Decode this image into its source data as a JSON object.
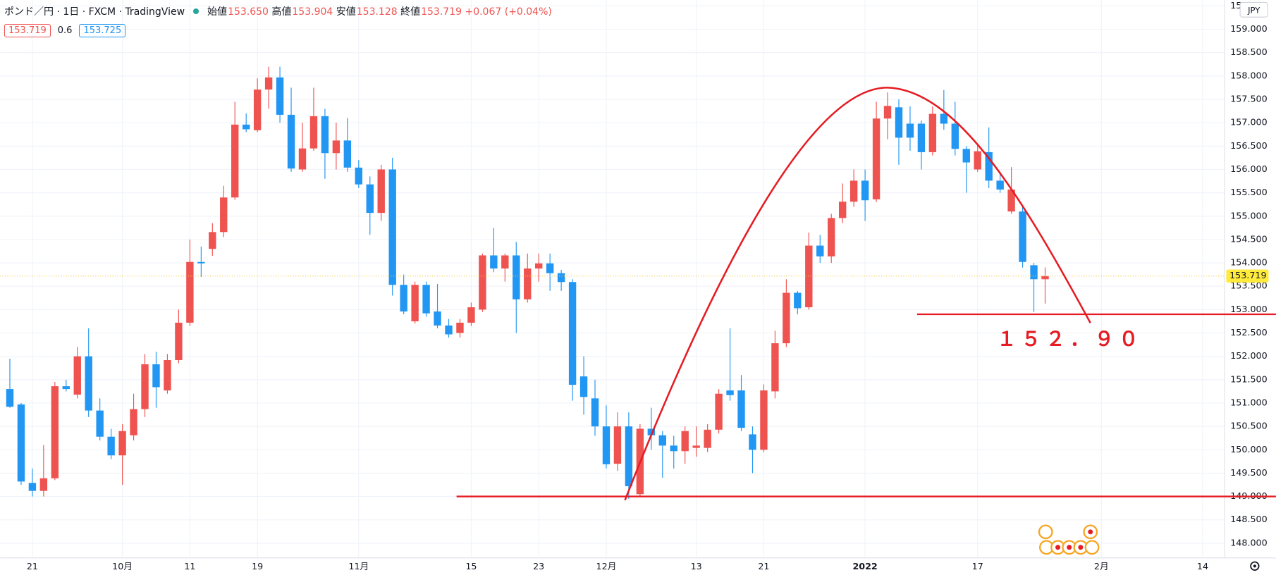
{
  "header": {
    "symbol": "ポンド／円 · 1日 · FXCM · TradingView",
    "fields": [
      {
        "label": "始値",
        "value": "153.650"
      },
      {
        "label": "高値",
        "value": "153.904"
      },
      {
        "label": "安値",
        "value": "153.128"
      },
      {
        "label": "終値",
        "value": "153.719"
      }
    ],
    "change": "+0.067 (+0.04%)",
    "bid": "153.719",
    "spread": "0.6",
    "ask": "153.725",
    "currency": "JPY"
  },
  "chart_data": {
    "type": "candlestick",
    "up_color": "#ef5350",
    "down_color": "#2196f3",
    "grid": true,
    "categories": [
      null,
      null,
      "21",
      null,
      null,
      null,
      null,
      null,
      null,
      null,
      "10月",
      null,
      null,
      null,
      null,
      null,
      "11",
      null,
      null,
      null,
      null,
      null,
      "19",
      null,
      null,
      null,
      null,
      null,
      null,
      null,
      null,
      "11月",
      null,
      null,
      null,
      null,
      null,
      null,
      null,
      null,
      null,
      "15",
      null,
      null,
      null,
      null,
      null,
      "23",
      null,
      null,
      null,
      null,
      null,
      "12月",
      null,
      null,
      null,
      null,
      null,
      null,
      null,
      "13",
      null,
      null,
      null,
      null,
      null,
      "21",
      null,
      null,
      null,
      null,
      null,
      null,
      null,
      null,
      "2022",
      null,
      null,
      null,
      null,
      null,
      null,
      null,
      null,
      null,
      "17",
      null,
      null,
      null,
      null,
      null,
      null,
      null,
      null,
      null,
      null,
      "2月",
      null,
      null,
      null,
      null,
      null,
      null,
      null,
      null,
      "14",
      null
    ],
    "open": [
      151.3,
      150.97,
      149.29,
      149.12,
      149.39,
      151.36,
      151.18,
      152.0,
      150.84,
      150.28,
      149.88,
      150.31,
      150.87,
      151.83,
      151.27,
      151.92,
      152.72,
      154.02,
      154.3,
      154.66,
      155.4,
      156.96,
      156.84,
      157.71,
      157.97,
      157.17,
      156.0,
      156.45,
      157.14,
      156.35,
      156.62,
      156.04,
      155.68,
      155.07,
      156.0,
      153.53,
      152.75,
      153.53,
      152.96,
      152.66,
      152.5,
      152.72,
      153.0,
      154.16,
      153.88,
      154.16,
      153.22,
      153.88,
      153.99,
      153.78,
      153.59,
      151.57,
      151.1,
      150.5,
      149.7,
      150.5,
      149.05,
      150.45,
      150.31,
      150.09,
      149.97,
      150.04,
      150.04,
      150.43,
      151.27,
      151.27,
      150.33,
      150.0,
      151.25,
      152.28,
      153.36,
      153.05,
      154.37,
      154.14,
      154.96,
      155.31,
      155.76,
      155.36,
      157.09,
      157.33,
      156.98,
      156.98,
      156.37,
      157.19,
      156.98,
      156.44,
      156.0,
      156.37,
      155.76,
      155.1,
      155.1,
      153.95,
      153.65,
      null,
      null,
      null,
      null,
      null,
      null,
      null,
      null,
      null,
      null,
      null,
      null,
      null,
      null,
      null
    ],
    "high": [
      151.95,
      151.0,
      149.6,
      150.1,
      151.45,
      151.5,
      152.2,
      152.6,
      151.1,
      150.45,
      150.55,
      151.2,
      152.05,
      152.1,
      152.05,
      153.0,
      154.5,
      154.35,
      154.85,
      155.65,
      157.45,
      157.2,
      157.95,
      158.2,
      158.2,
      157.75,
      157.0,
      157.75,
      157.3,
      157.0,
      157.1,
      156.2,
      155.85,
      156.1,
      156.25,
      153.75,
      153.6,
      153.6,
      153.55,
      152.8,
      152.8,
      153.15,
      154.2,
      154.75,
      154.2,
      154.45,
      154.2,
      154.2,
      154.2,
      153.85,
      153.65,
      152.0,
      151.5,
      150.95,
      150.8,
      150.8,
      150.55,
      150.9,
      150.4,
      150.3,
      150.5,
      150.5,
      150.55,
      151.3,
      152.6,
      151.6,
      150.5,
      151.4,
      152.55,
      153.65,
      153.4,
      154.65,
      154.6,
      155.05,
      155.7,
      156.0,
      156.0,
      157.45,
      157.65,
      157.5,
      157.35,
      157.05,
      157.35,
      157.7,
      157.45,
      156.5,
      156.55,
      156.9,
      155.95,
      156.05,
      155.2,
      154.0,
      153.904,
      null,
      null,
      null,
      null,
      null,
      null,
      null,
      null,
      null,
      null,
      null,
      null,
      null,
      null,
      null
    ],
    "low": [
      150.9,
      149.25,
      149.0,
      149.0,
      149.35,
      151.25,
      151.1,
      150.7,
      150.2,
      149.8,
      149.25,
      150.2,
      150.7,
      150.9,
      151.2,
      151.85,
      152.65,
      153.7,
      154.15,
      154.55,
      155.35,
      156.8,
      156.8,
      157.3,
      157.0,
      155.95,
      155.95,
      156.4,
      155.8,
      156.0,
      155.95,
      155.6,
      154.6,
      154.9,
      153.3,
      152.9,
      152.7,
      152.85,
      152.6,
      152.4,
      152.4,
      152.65,
      152.95,
      153.8,
      153.6,
      152.5,
      153.15,
      153.6,
      153.4,
      153.4,
      151.05,
      150.75,
      150.3,
      149.6,
      149.55,
      148.95,
      149.0,
      150.0,
      149.4,
      149.6,
      149.7,
      149.85,
      149.95,
      150.35,
      151.05,
      150.4,
      149.5,
      149.95,
      151.1,
      152.2,
      152.9,
      153.0,
      154.0,
      154.0,
      154.85,
      155.2,
      154.9,
      155.3,
      156.65,
      156.1,
      156.4,
      156.0,
      156.3,
      156.85,
      156.3,
      155.5,
      155.95,
      155.6,
      155.5,
      155.05,
      153.9,
      152.95,
      153.128,
      null,
      null,
      null,
      null,
      null,
      null,
      null,
      null,
      null,
      null,
      null,
      null,
      null,
      null,
      null
    ],
    "close": [
      150.92,
      149.32,
      149.12,
      149.39,
      151.36,
      151.3,
      152.0,
      150.84,
      150.28,
      149.88,
      150.4,
      150.87,
      151.83,
      151.34,
      151.92,
      152.72,
      154.02,
      153.99,
      154.66,
      155.4,
      156.96,
      156.86,
      157.71,
      157.97,
      157.17,
      156.02,
      156.45,
      157.14,
      156.35,
      156.62,
      156.04,
      155.68,
      155.07,
      156.0,
      153.53,
      152.96,
      153.53,
      152.92,
      152.66,
      152.47,
      152.72,
      153.05,
      154.16,
      153.88,
      154.16,
      153.22,
      153.88,
      153.99,
      153.78,
      153.59,
      151.39,
      151.13,
      150.5,
      149.69,
      150.5,
      149.22,
      150.45,
      150.31,
      150.09,
      149.97,
      150.4,
      150.09,
      150.43,
      151.2,
      151.17,
      150.47,
      150.0,
      151.27,
      152.28,
      153.36,
      153.03,
      154.37,
      154.14,
      154.96,
      155.31,
      155.76,
      155.34,
      157.09,
      157.36,
      156.68,
      156.68,
      156.37,
      157.19,
      156.98,
      156.44,
      156.15,
      156.39,
      155.76,
      155.57,
      155.57,
      154.02,
      153.65,
      153.719,
      null,
      null,
      null,
      null,
      null,
      null,
      null,
      null,
      null,
      null,
      null,
      null,
      null,
      null,
      null
    ],
    "ylim": [
      147.72,
      159.627
    ],
    "yticks": [
      {
        "value": 148,
        "label": "148.000"
      },
      {
        "value": 148.5,
        "label": "148.500"
      },
      {
        "value": 149,
        "label": "149.000"
      },
      {
        "value": 149.5,
        "label": "149.500"
      },
      {
        "value": 150,
        "label": "150.000"
      },
      {
        "value": 150.5,
        "label": "150.500"
      },
      {
        "value": 151,
        "label": "151.000"
      },
      {
        "value": 151.5,
        "label": "151.500"
      },
      {
        "value": 152,
        "label": "152.000"
      },
      {
        "value": 152.5,
        "label": "152.500"
      },
      {
        "value": 153,
        "label": "153.000"
      },
      {
        "value": 153.5,
        "label": "153.500"
      },
      {
        "value": 154,
        "label": "154.000"
      },
      {
        "value": 154.5,
        "label": "154.500"
      },
      {
        "value": 155,
        "label": "155.000"
      },
      {
        "value": 155.5,
        "label": "155.500"
      },
      {
        "value": 156,
        "label": "156.000"
      },
      {
        "value": 156.5,
        "label": "156.500"
      },
      {
        "value": 157,
        "label": "157.000"
      },
      {
        "value": 157.5,
        "label": "157.500"
      },
      {
        "value": 158,
        "label": "158.000"
      },
      {
        "value": 158.5,
        "label": "158.500"
      },
      {
        "value": 159,
        "label": "159.000"
      },
      {
        "value": 159.5,
        "label": "159.500"
      }
    ],
    "hlines": [
      149.0,
      152.9
    ],
    "annotation": "１５２．９０"
  }
}
